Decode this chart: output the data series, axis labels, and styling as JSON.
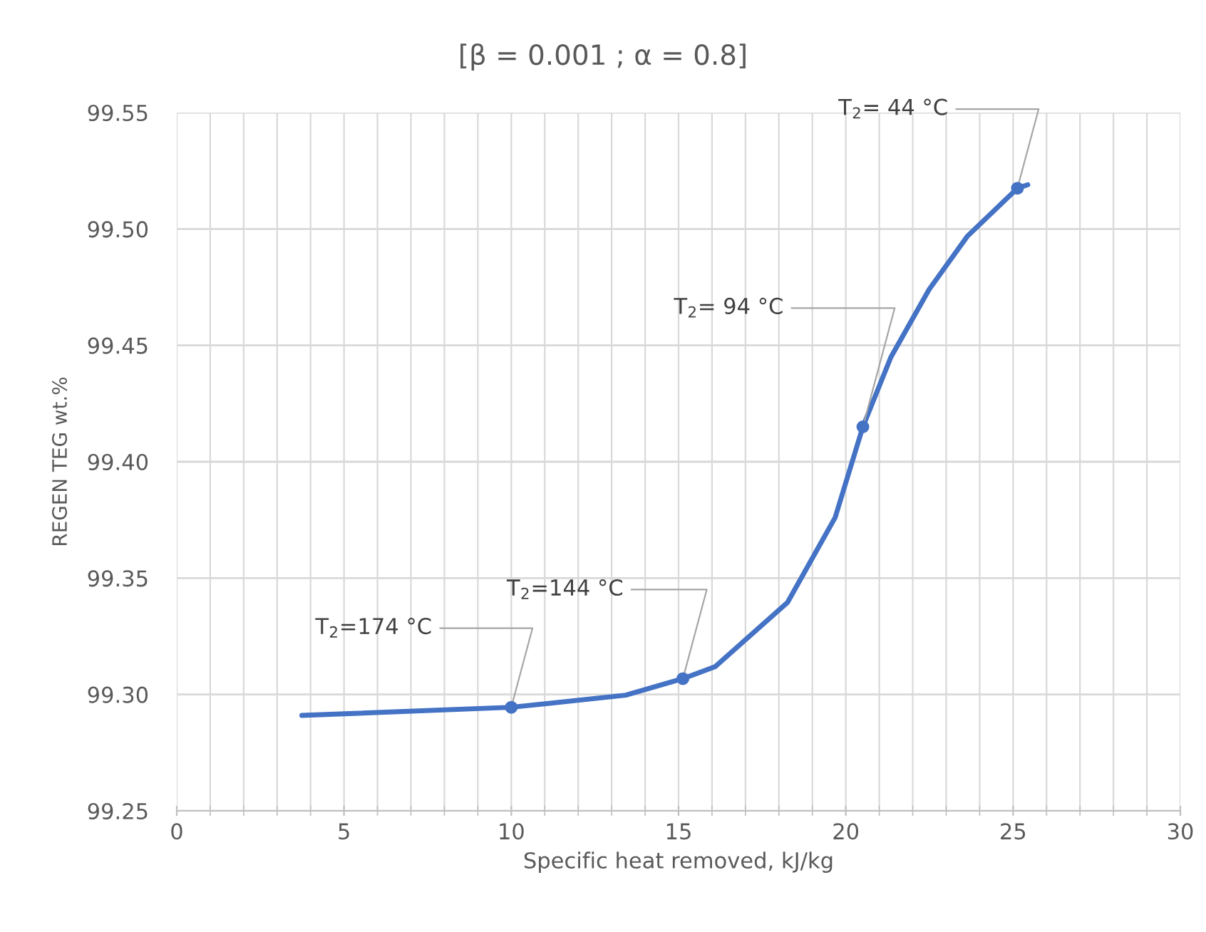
{
  "chart_data": {
    "type": "line",
    "title": "[β = 0.001 ; α = 0.8]",
    "xlabel": "Specific heat removed, kJ/kg",
    "ylabel": "REGEN TEG wt.%",
    "xlim": [
      0,
      30
    ],
    "xticks": [
      0,
      5,
      10,
      15,
      20,
      25,
      30
    ],
    "ylim": [
      99.25,
      99.55
    ],
    "yticks": [
      {
        "value": 99.25,
        "label": "99.25"
      },
      {
        "value": 99.3,
        "label": "99.30"
      },
      {
        "value": 99.35,
        "label": "99.35"
      },
      {
        "value": 99.4,
        "label": "99.40"
      },
      {
        "value": 99.45,
        "label": "99.45"
      },
      {
        "value": 99.5,
        "label": "99.50"
      },
      {
        "value": 99.55,
        "label": "99.55"
      }
    ],
    "grid": true,
    "line_style": "solid",
    "series": [
      {
        "color": "#4472c4",
        "marker": "none",
        "x": [
          3.74,
          10.0,
          13.42,
          15.13,
          16.1,
          18.26,
          19.68,
          20.51,
          21.35,
          22.49,
          23.64,
          25.13,
          25.44
        ],
        "values": [
          99.291,
          99.2945,
          99.2997,
          99.3068,
          99.312,
          99.3396,
          99.376,
          99.415,
          99.445,
          99.474,
          99.497,
          99.5175,
          99.519
        ]
      },
      {
        "type": "scatter",
        "color": "#4472c4",
        "marker": "circle",
        "x": [
          10.0,
          15.13,
          20.51,
          25.13
        ],
        "values": [
          99.2945,
          99.3068,
          99.415,
          99.5175
        ]
      }
    ],
    "annotations": [
      {
        "text": "T$_{2}$=174 °C",
        "x": 10.0,
        "y": 99.2945
      },
      {
        "text": "T$_{2}$=144 °C",
        "x": 15.13,
        "y": 99.3068
      },
      {
        "text": "T$_{2}$= 94 °C",
        "x": 20.51,
        "y": 99.415
      },
      {
        "text": "T$_{2}$= 44 °C",
        "x": 25.13,
        "y": 99.5175
      }
    ]
  }
}
